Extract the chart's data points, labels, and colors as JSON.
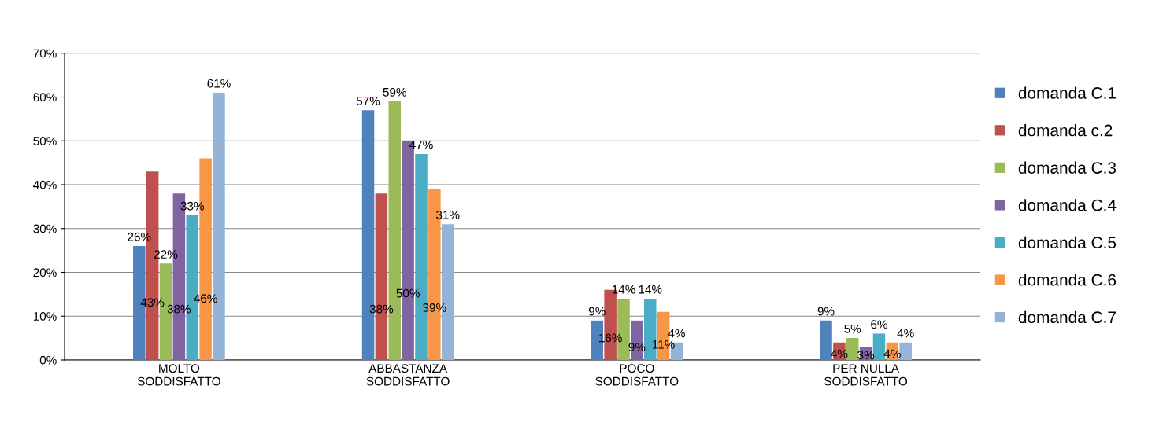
{
  "chart_data": {
    "type": "bar",
    "categories": [
      "MOLTO\nSODDISFATTO",
      "ABBASTANZA\nSODDISFATTO",
      "POCO\nSODDISFATTO",
      "PER NULLA\nSODDISFATTO"
    ],
    "series": [
      {
        "name": "domanda C.1",
        "color": "#4f81bd",
        "values": [
          26,
          57,
          9,
          9
        ],
        "value_labels": [
          "26%",
          "57%",
          "9%",
          "9%"
        ]
      },
      {
        "name": "domanda c.2",
        "color": "#c0504d",
        "values": [
          43,
          38,
          16,
          4
        ],
        "value_labels": [
          "43%",
          "38%",
          "16%",
          "4%"
        ]
      },
      {
        "name": "domanda C.3",
        "color": "#9bbb59",
        "values": [
          22,
          59,
          14,
          5
        ],
        "value_labels": [
          "22%",
          "59%",
          "14%",
          "5%"
        ]
      },
      {
        "name": "domanda C.4",
        "color": "#8064a2",
        "values": [
          38,
          50,
          9,
          3
        ],
        "value_labels": [
          "38%",
          "50%",
          "9%",
          "3%"
        ]
      },
      {
        "name": "domanda C.5",
        "color": "#4bacc6",
        "values": [
          33,
          47,
          14,
          6
        ],
        "value_labels": [
          "33%",
          "47%",
          "14%",
          "6%"
        ]
      },
      {
        "name": "domanda C.6",
        "color": "#f79646",
        "values": [
          46,
          39,
          11,
          4
        ],
        "value_labels": [
          "46%",
          "39%",
          "11%",
          "4%"
        ]
      },
      {
        "name": "domanda C.7",
        "color": "#95b3d7",
        "values": [
          61,
          31,
          4,
          4
        ],
        "value_labels": [
          "61%",
          "31%",
          "4%",
          "4%"
        ]
      }
    ],
    "ylim": [
      0,
      70
    ],
    "yticks": [
      {
        "value": 0,
        "label": "0%"
      },
      {
        "value": 10,
        "label": "10%"
      },
      {
        "value": 20,
        "label": "20%"
      },
      {
        "value": 30,
        "label": "30%"
      },
      {
        "value": 40,
        "label": "40%"
      },
      {
        "value": 50,
        "label": "50%"
      },
      {
        "value": 60,
        "label": "60%"
      },
      {
        "value": 70,
        "label": "70%"
      }
    ],
    "grid": "y",
    "legend": "right"
  }
}
